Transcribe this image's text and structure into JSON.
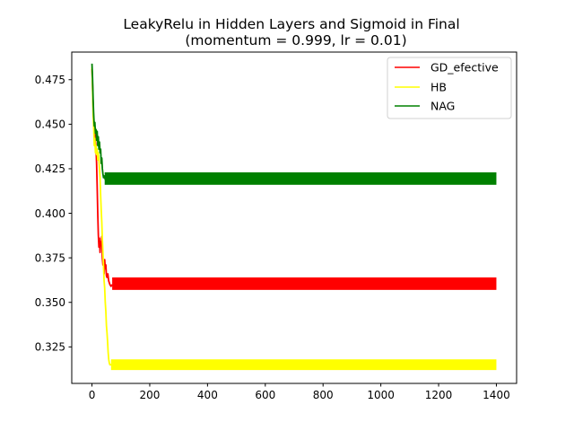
{
  "chart_data": {
    "type": "line",
    "title": "LeakyRelu in Hidden Layers and Sigmoid in Final",
    "subtitle": "(momentum = 0.999, lr = 0.01)",
    "xlabel": "",
    "ylabel": "",
    "xlim": [
      -70,
      1470
    ],
    "ylim": [
      0.3045,
      0.4905
    ],
    "xticks": [
      0,
      200,
      400,
      600,
      800,
      1000,
      1200,
      1400
    ],
    "xtick_labels": [
      "0",
      "200",
      "400",
      "600",
      "800",
      "1000",
      "1200",
      "1400"
    ],
    "yticks": [
      0.325,
      0.35,
      0.375,
      0.4,
      0.425,
      0.45,
      0.475
    ],
    "ytick_labels": [
      "0.325",
      "0.350",
      "0.375",
      "0.400",
      "0.425",
      "0.450",
      "0.475"
    ],
    "grid": false,
    "legend_position": "top-right",
    "x_max": 1400,
    "series": [
      {
        "name": "GD_efective",
        "color": "#ff0000",
        "points": [
          [
            0,
            0.481
          ],
          [
            2,
            0.472
          ],
          [
            4,
            0.46
          ],
          [
            6,
            0.452
          ],
          [
            8,
            0.447
          ],
          [
            10,
            0.443
          ],
          [
            12,
            0.44
          ],
          [
            14,
            0.437
          ],
          [
            16,
            0.428
          ],
          [
            18,
            0.415
          ],
          [
            20,
            0.4
          ],
          [
            22,
            0.388
          ],
          [
            24,
            0.381
          ],
          [
            26,
            0.386
          ],
          [
            28,
            0.378
          ],
          [
            30,
            0.384
          ],
          [
            32,
            0.382
          ],
          [
            34,
            0.387
          ],
          [
            36,
            0.375
          ],
          [
            38,
            0.371
          ],
          [
            40,
            0.374
          ],
          [
            42,
            0.366
          ],
          [
            44,
            0.374
          ],
          [
            46,
            0.369
          ],
          [
            48,
            0.371
          ],
          [
            50,
            0.365
          ],
          [
            52,
            0.364
          ],
          [
            55,
            0.366
          ],
          [
            58,
            0.362
          ],
          [
            62,
            0.36
          ],
          [
            66,
            0.359
          ],
          [
            70,
            0.36
          ]
        ],
        "band": {
          "x_start": 70,
          "low": 0.357,
          "high": 0.364
        }
      },
      {
        "name": "HB",
        "color": "#ffff00",
        "points": [
          [
            0,
            0.482
          ],
          [
            2,
            0.47
          ],
          [
            4,
            0.455
          ],
          [
            6,
            0.448
          ],
          [
            8,
            0.438
          ],
          [
            10,
            0.442
          ],
          [
            12,
            0.434
          ],
          [
            14,
            0.438
          ],
          [
            16,
            0.433
          ],
          [
            18,
            0.436
          ],
          [
            20,
            0.43
          ],
          [
            22,
            0.434
          ],
          [
            24,
            0.43
          ],
          [
            26,
            0.425
          ],
          [
            28,
            0.42
          ],
          [
            30,
            0.41
          ],
          [
            32,
            0.402
          ],
          [
            34,
            0.395
          ],
          [
            36,
            0.385
          ],
          [
            38,
            0.378
          ],
          [
            40,
            0.37
          ],
          [
            42,
            0.362
          ],
          [
            44,
            0.358
          ],
          [
            46,
            0.35
          ],
          [
            48,
            0.345
          ],
          [
            50,
            0.337
          ],
          [
            52,
            0.333
          ],
          [
            54,
            0.328
          ],
          [
            56,
            0.322
          ],
          [
            58,
            0.318
          ],
          [
            60,
            0.316
          ],
          [
            62,
            0.315
          ],
          [
            66,
            0.315
          ],
          [
            70,
            0.315
          ]
        ],
        "band": {
          "x_start": 66,
          "low": 0.312,
          "high": 0.318
        }
      },
      {
        "name": "NAG",
        "color": "#008000",
        "points": [
          [
            0,
            0.484
          ],
          [
            2,
            0.476
          ],
          [
            4,
            0.464
          ],
          [
            6,
            0.455
          ],
          [
            8,
            0.449
          ],
          [
            10,
            0.451
          ],
          [
            12,
            0.445
          ],
          [
            14,
            0.447
          ],
          [
            16,
            0.441
          ],
          [
            18,
            0.446
          ],
          [
            20,
            0.438
          ],
          [
            22,
            0.443
          ],
          [
            24,
            0.436
          ],
          [
            26,
            0.44
          ],
          [
            28,
            0.434
          ],
          [
            30,
            0.436
          ],
          [
            32,
            0.428
          ],
          [
            34,
            0.431
          ],
          [
            36,
            0.425
          ],
          [
            38,
            0.422
          ],
          [
            40,
            0.42
          ],
          [
            42,
            0.421
          ],
          [
            46,
            0.419
          ],
          [
            50,
            0.42
          ]
        ],
        "band": {
          "x_start": 44,
          "low": 0.416,
          "high": 0.423
        }
      }
    ]
  }
}
